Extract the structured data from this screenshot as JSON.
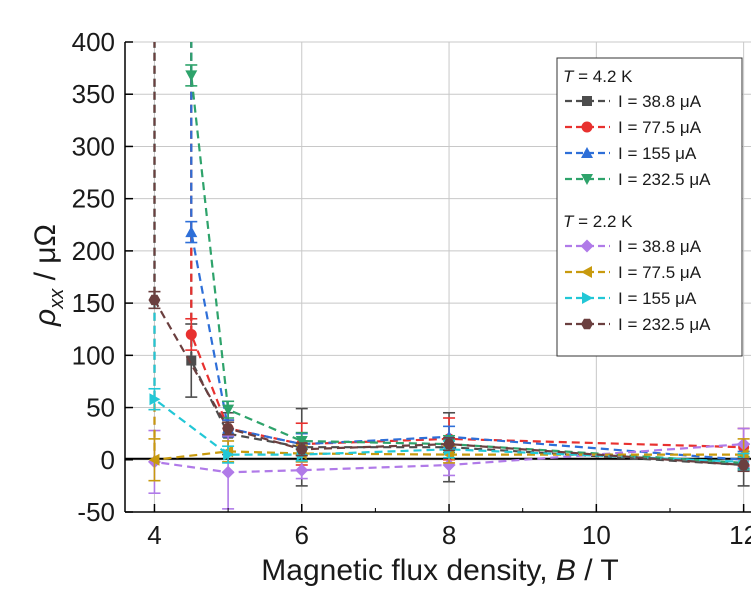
{
  "chart_data": {
    "type": "line",
    "xlabel_prefix": "Magnetic flux density, ",
    "xlabel_var": "B",
    "xlabel_unit": " / T",
    "ylabel_var": "ρ",
    "ylabel_sub": "xx",
    "ylabel_unit": " / μΩ",
    "xlim": [
      3.6,
      12.1
    ],
    "ylim": [
      -50,
      400
    ],
    "xticks": [
      "4",
      "6",
      "8",
      "10",
      "12"
    ],
    "yticks": [
      "400",
      "350",
      "300",
      "250",
      "200",
      "150",
      "100",
      "50",
      "0",
      "-50"
    ],
    "grid": true,
    "legend_position": "top-right",
    "groups": [
      {
        "title_var": "T",
        "title_rest": " = 4.2 K",
        "series": [
          {
            "name": "I = 38.8 μA",
            "color": "#4d4d4d",
            "marker": "square",
            "points": [
              [
                4.5,
                95,
                35
              ],
              [
                5,
                25,
                20
              ],
              [
                6,
                12,
                37
              ],
              [
                8,
                12,
                33
              ],
              [
                12,
                -5,
                20
              ]
            ]
          },
          {
            "name": "I = 77.5 μA",
            "color": "#e8312f",
            "marker": "circle",
            "points": [
              [
                4.5,
                120,
                15
              ],
              [
                5,
                30,
                8
              ],
              [
                6,
                15,
                20
              ],
              [
                8,
                20,
                20
              ],
              [
                12,
                12,
                18
              ]
            ]
          },
          {
            "name": "I = 155 μA",
            "color": "#2e6fd8",
            "marker": "triangle-up",
            "points": [
              [
                4.5,
                218,
                10
              ],
              [
                5,
                30,
                8
              ],
              [
                6,
                15,
                10
              ],
              [
                8,
                22,
                10
              ],
              [
                12,
                0,
                8
              ]
            ]
          },
          {
            "name": "I = 232.5 μA",
            "color": "#2ea36b",
            "marker": "triangle-down",
            "points": [
              [
                4.5,
                368,
                10
              ],
              [
                5,
                48,
                8
              ],
              [
                6,
                18,
                8
              ],
              [
                8,
                15,
                8
              ],
              [
                12,
                -3,
                6
              ]
            ]
          }
        ]
      },
      {
        "title_var": "T",
        "title_rest": " = 2.2 K",
        "series": [
          {
            "name": "I = 38.8 μA",
            "color": "#b07ae8",
            "marker": "diamond",
            "points": [
              [
                4,
                -2,
                30
              ],
              [
                5,
                -12,
                35
              ],
              [
                6,
                -10,
                8
              ],
              [
                8,
                -5,
                10
              ],
              [
                12,
                15,
                15
              ]
            ]
          },
          {
            "name": "I = 77.5 μA",
            "color": "#c89a0e",
            "marker": "triangle-left",
            "points": [
              [
                4,
                0,
                20
              ],
              [
                5,
                8,
                10
              ],
              [
                6,
                6,
                8
              ],
              [
                8,
                5,
                8
              ],
              [
                12,
                5,
                15
              ]
            ]
          },
          {
            "name": "I = 155 μA",
            "color": "#22c7d6",
            "marker": "triangle-right",
            "points": [
              [
                4,
                58,
                10
              ],
              [
                5,
                5,
                8
              ],
              [
                6,
                5,
                6
              ],
              [
                8,
                10,
                8
              ],
              [
                12,
                -2,
                8
              ]
            ]
          },
          {
            "name": "I = 232.5 μA",
            "color": "#6b3f3f",
            "marker": "hexagon",
            "points": [
              [
                4,
                153,
                8
              ],
              [
                5,
                30,
                6
              ],
              [
                6,
                10,
                6
              ],
              [
                8,
                15,
                6
              ],
              [
                12,
                -5,
                6
              ]
            ]
          }
        ]
      }
    ]
  }
}
